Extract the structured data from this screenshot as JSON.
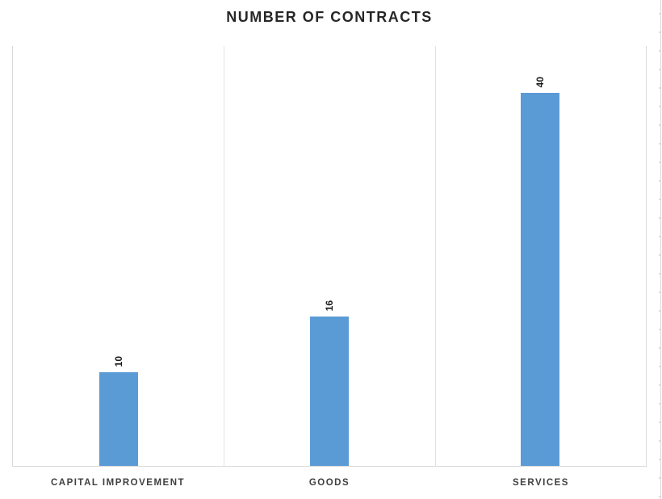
{
  "chart_data": {
    "type": "bar",
    "title": "NUMBER OF CONTRACTS",
    "categories": [
      "CAPITAL IMPROVEMENT",
      "GOODS",
      "SERVICES"
    ],
    "values": [
      10,
      16,
      40
    ],
    "data_labels": [
      "10",
      "16",
      "40"
    ],
    "xlabel": "",
    "ylabel": "",
    "ylim": [
      0,
      45
    ],
    "grid": "category-separator-lines-only",
    "legend_position": "none",
    "bar_color": "#5b9bd5",
    "plot_border_color": "#d9d9d9",
    "data_label_rotation_deg": -90
  }
}
